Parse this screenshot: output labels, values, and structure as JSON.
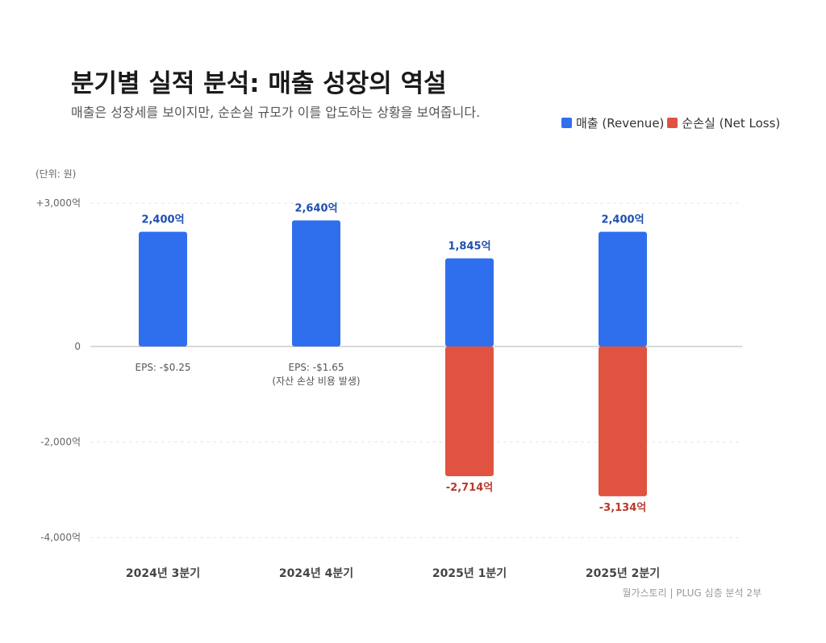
{
  "title": "분기별 실적 분석: 매출 성장의 역설",
  "subtitle": "매출은 성장세를 보이지만, 순손실 규모가 이를 압도하는 상황을 보여줍니다.",
  "footer": "월가스토리 | PLUG 심층 분석 2부",
  "chart_data": {
    "type": "bar",
    "unit_label": "(단위: 원)",
    "categories": [
      "2024년 3분기",
      "2024년 4분기",
      "2025년 1분기",
      "2025년 2분기"
    ],
    "series": [
      {
        "name": "매출 (Revenue)",
        "color": "#2F6FED",
        "label_color": "#1F4FB0",
        "values": [
          2400,
          2640,
          1845,
          2400
        ],
        "labels": [
          "2,400억",
          "2,640억",
          "1,845억",
          "2,400억"
        ]
      },
      {
        "name": "순손실 (Net Loss)",
        "color": "#E05340",
        "label_color": "#B83A2A",
        "values": [
          null,
          null,
          -2714,
          -3134
        ],
        "labels": [
          "",
          "",
          "-2,714억",
          "-3,134억"
        ]
      }
    ],
    "annotations": [
      [
        "EPS: -$0.25"
      ],
      [
        "EPS: -$1.65",
        "(자산 손상 비용 발생)"
      ],
      [],
      []
    ],
    "yticks": [
      3000,
      0,
      -2000,
      -4000
    ],
    "ytick_labels": [
      "+3,000억",
      "0",
      "-2,000억",
      "-4,000억"
    ],
    "ylim": [
      -4000,
      3000
    ],
    "grid": true,
    "legend_position": "top-right",
    "stacked": "diverging"
  }
}
